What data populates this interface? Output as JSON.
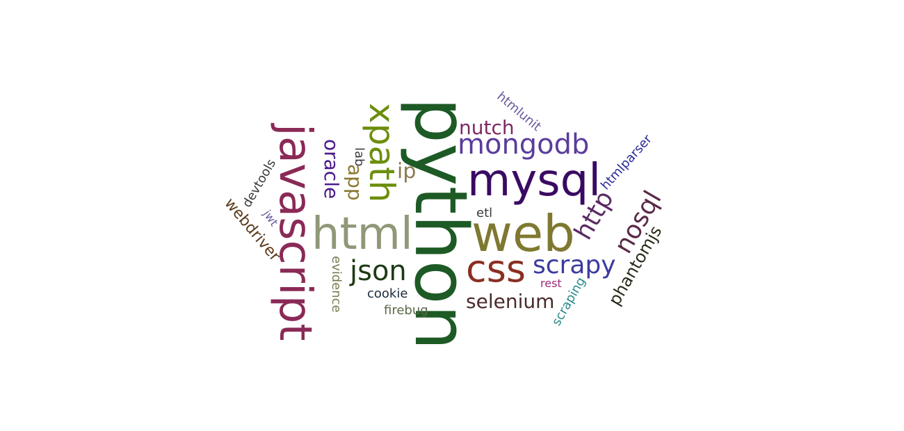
{
  "words": [
    {
      "id": "python",
      "text": "python",
      "color": "#1d5a25"
    },
    {
      "id": "javascript",
      "text": "javascript",
      "color": "#8a2a56"
    },
    {
      "id": "web",
      "text": "web",
      "color": "#7f7830"
    },
    {
      "id": "html",
      "text": "html",
      "color": "#8f9878"
    },
    {
      "id": "mysql",
      "text": "mysql",
      "color": "#3a0a63"
    },
    {
      "id": "xpath",
      "text": "xpath",
      "color": "#6c8e0c"
    },
    {
      "id": "mongodb",
      "text": "mongodb",
      "color": "#5b3c9b"
    },
    {
      "id": "css",
      "text": "css",
      "color": "#8a2f22"
    },
    {
      "id": "scrapy",
      "text": "scrapy",
      "color": "#3b3aa0"
    },
    {
      "id": "json",
      "text": "json",
      "color": "#1d3a15"
    },
    {
      "id": "http",
      "text": "http",
      "color": "#5a2a63"
    },
    {
      "id": "nosql",
      "text": "nosql",
      "color": "#5a2a48"
    },
    {
      "id": "nutch",
      "text": "nutch",
      "color": "#7a2a63"
    },
    {
      "id": "oracle",
      "text": "oracle",
      "color": "#4a1a8a"
    },
    {
      "id": "ip",
      "text": "ip",
      "color": "#8a7a50"
    },
    {
      "id": "app",
      "text": "app",
      "color": "#8a7a30"
    },
    {
      "id": "lab",
      "text": "lab",
      "color": "#3a3a3a"
    },
    {
      "id": "selenium",
      "text": "selenium",
      "color": "#4a2a2a"
    },
    {
      "id": "phantomjs",
      "text": "phantomjs",
      "color": "#2a2a1a"
    },
    {
      "id": "webdriver",
      "text": "webdriver",
      "color": "#5a3a1a"
    },
    {
      "id": "devtools",
      "text": "devtools",
      "color": "#3a3a3a"
    },
    {
      "id": "htmlunit",
      "text": "htmlunit",
      "color": "#6a5a9a"
    },
    {
      "id": "htmlparser",
      "text": "htmlparser",
      "color": "#2a2a9a"
    },
    {
      "id": "evidence",
      "text": "evidence",
      "color": "#7a7a50"
    },
    {
      "id": "cookie",
      "text": "cookie",
      "color": "#1a2a3a"
    },
    {
      "id": "firebug",
      "text": "firebug",
      "color": "#5a6a4a"
    },
    {
      "id": "etl",
      "text": "etl",
      "color": "#3a3a3a"
    },
    {
      "id": "jwt",
      "text": "jwt",
      "color": "#6a5a9a"
    },
    {
      "id": "rest",
      "text": "rest",
      "color": "#9a2a7a"
    },
    {
      "id": "scraping",
      "text": "scraping",
      "color": "#2a8a8a"
    }
  ]
}
